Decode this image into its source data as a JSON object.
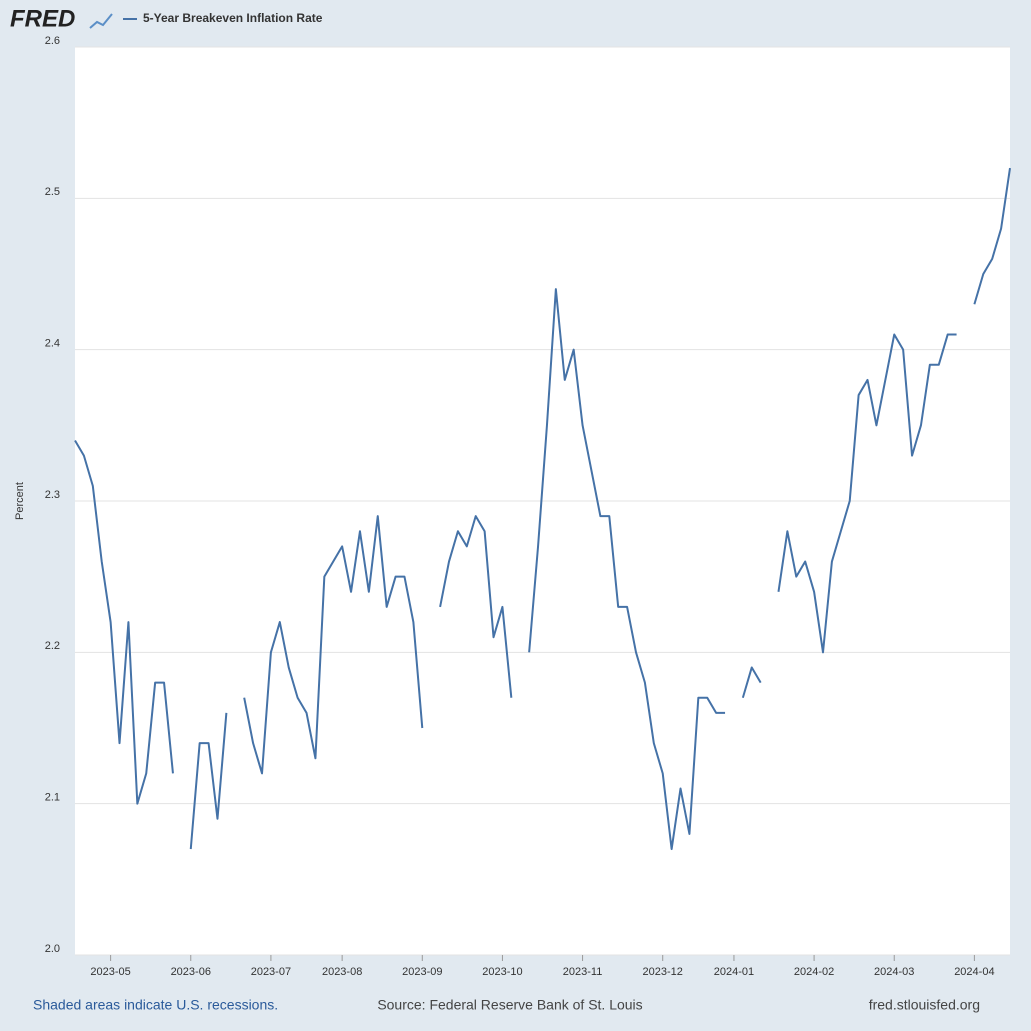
{
  "logo": "FRED",
  "chart_data": {
    "type": "line",
    "series": [
      {
        "name": "5-Year Breakeven Inflation Rate",
        "color": "#4572a7",
        "values": [
          2.34,
          2.33,
          2.31,
          2.26,
          2.22,
          2.14,
          2.22,
          2.1,
          2.12,
          2.18,
          2.18,
          2.12,
          null,
          2.07,
          2.14,
          2.14,
          2.09,
          2.16,
          null,
          2.17,
          2.14,
          2.12,
          2.2,
          2.22,
          2.19,
          2.17,
          2.16,
          2.13,
          2.25,
          2.26,
          2.27,
          2.24,
          2.28,
          2.24,
          2.29,
          2.23,
          2.25,
          2.25,
          2.22,
          2.15,
          null,
          2.23,
          2.26,
          2.28,
          2.27,
          2.29,
          2.28,
          2.21,
          2.23,
          2.17,
          null,
          2.2,
          2.27,
          2.35,
          2.44,
          2.38,
          2.4,
          2.35,
          2.32,
          2.29,
          2.29,
          2.23,
          2.23,
          2.2,
          2.18,
          2.14,
          2.12,
          2.07,
          2.11,
          2.08,
          2.17,
          2.17,
          2.16,
          2.16,
          null,
          2.17,
          2.19,
          2.18,
          null,
          2.24,
          2.28,
          2.25,
          2.26,
          2.24,
          2.2,
          2.26,
          2.28,
          2.3,
          2.37,
          2.38,
          2.35,
          2.38,
          2.41,
          2.4,
          2.33,
          2.35,
          2.39,
          2.39,
          2.41,
          2.41,
          null,
          2.43,
          2.45,
          2.46,
          2.48,
          2.52
        ]
      }
    ],
    "categories": [
      null,
      null,
      null,
      null,
      "2023-05",
      null,
      null,
      null,
      null,
      null,
      null,
      null,
      null,
      "2023-06",
      null,
      null,
      null,
      null,
      null,
      null,
      null,
      null,
      "2023-07",
      null,
      null,
      null,
      null,
      null,
      null,
      null,
      "2023-08",
      null,
      null,
      null,
      null,
      null,
      null,
      null,
      null,
      "2023-09",
      null,
      null,
      null,
      null,
      null,
      null,
      null,
      null,
      "2023-10",
      null,
      null,
      null,
      null,
      null,
      null,
      null,
      null,
      "2023-11",
      null,
      null,
      null,
      null,
      null,
      null,
      null,
      null,
      "2023-12",
      null,
      null,
      null,
      null,
      null,
      null,
      null,
      "2024-01",
      null,
      null,
      null,
      null,
      null,
      null,
      null,
      null,
      "2024-02",
      null,
      null,
      null,
      null,
      null,
      null,
      null,
      null,
      "2024-03",
      null,
      null,
      null,
      null,
      null,
      null,
      null,
      null,
      "2024-04",
      null,
      null,
      null,
      null
    ],
    "ylabel": "Percent",
    "ylim": [
      2.0,
      2.6
    ],
    "yticks": [
      {
        "value": 2,
        "label": "2.0"
      },
      2.1,
      2.2,
      2.3,
      2.4,
      2.5,
      2.6
    ],
    "grid": true,
    "notes": {
      "left": "Shaded areas indicate U.S. recessions.",
      "center": "Source: Federal Reserve Bank of St. Louis",
      "right": "fred.stlouisfed.org"
    }
  }
}
